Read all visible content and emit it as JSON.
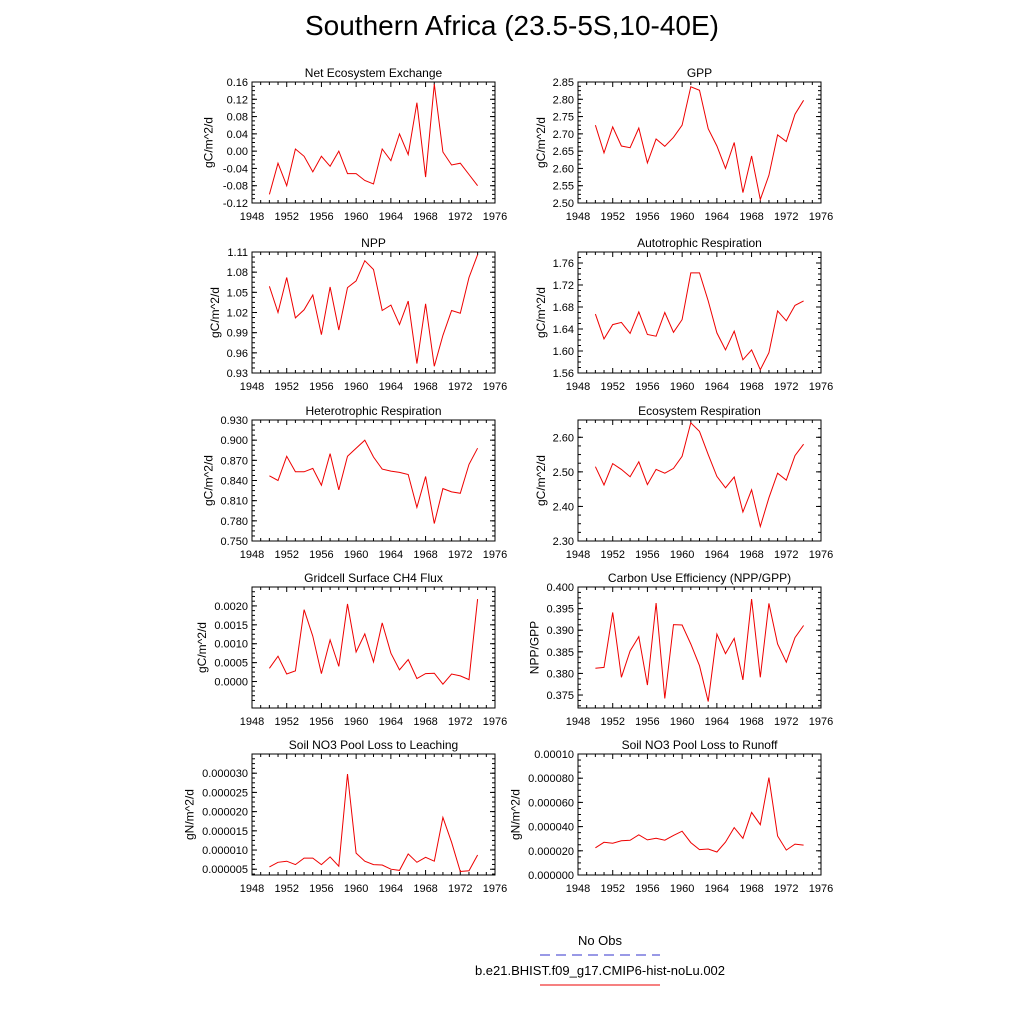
{
  "title": "Southern Africa (23.5-5S,10-40E)",
  "legend": {
    "obs_label": "No Obs",
    "obs_color": "#3333cc",
    "model_label": "b.e21.BHIST.f09_g17.CMIP6-hist-noLu.002",
    "model_color": "#ee0000"
  },
  "x_ticks": [
    "1948",
    "1952",
    "1956",
    "1960",
    "1964",
    "1968",
    "1972",
    "1976"
  ],
  "chart_data": [
    {
      "type": "line",
      "title": "Net Ecosystem Exchange",
      "ylabel": "gC/m^2/d",
      "xlim": [
        1948,
        1976
      ],
      "ylim": [
        -0.12,
        0.16
      ],
      "yticks": [
        "-0.12",
        "-0.08",
        "-0.04",
        "0.00",
        "0.04",
        "0.08",
        "0.12",
        "0.16"
      ],
      "x": [
        1950,
        1951,
        1952,
        1953,
        1954,
        1955,
        1956,
        1957,
        1958,
        1959,
        1960,
        1961,
        1962,
        1963,
        1964,
        1965,
        1966,
        1967,
        1968,
        1969,
        1970,
        1971,
        1972,
        1973,
        1974
      ],
      "values": [
        -0.1,
        -0.028,
        -0.08,
        0.005,
        -0.012,
        -0.048,
        -0.012,
        -0.035,
        0.0,
        -0.052,
        -0.052,
        -0.068,
        -0.076,
        0.005,
        -0.022,
        0.04,
        -0.008,
        0.112,
        -0.06,
        0.155,
        -0.002,
        -0.032,
        -0.028,
        -0.054,
        -0.08
      ]
    },
    {
      "type": "line",
      "title": "GPP",
      "ylabel": "gC/m^2/d",
      "xlim": [
        1948,
        1976
      ],
      "ylim": [
        2.5,
        2.85
      ],
      "yticks": [
        "2.50",
        "2.55",
        "2.60",
        "2.65",
        "2.70",
        "2.75",
        "2.80",
        "2.85"
      ],
      "x": [
        1950,
        1951,
        1952,
        1953,
        1954,
        1955,
        1956,
        1957,
        1958,
        1959,
        1960,
        1961,
        1962,
        1963,
        1964,
        1965,
        1966,
        1967,
        1968,
        1969,
        1970,
        1971,
        1972,
        1973,
        1974
      ],
      "values": [
        2.725,
        2.645,
        2.72,
        2.665,
        2.66,
        2.717,
        2.616,
        2.685,
        2.664,
        2.69,
        2.725,
        2.836,
        2.826,
        2.715,
        2.665,
        2.6,
        2.675,
        2.53,
        2.636,
        2.51,
        2.58,
        2.697,
        2.678,
        2.757,
        2.797
      ]
    },
    {
      "type": "line",
      "title": "NPP",
      "ylabel": "gC/m^2/d",
      "xlim": [
        1948,
        1976
      ],
      "ylim": [
        0.93,
        1.11
      ],
      "yticks": [
        "0.93",
        "0.96",
        "0.99",
        "1.02",
        "1.05",
        "1.08",
        "1.11"
      ],
      "x": [
        1950,
        1951,
        1952,
        1953,
        1954,
        1955,
        1956,
        1957,
        1958,
        1959,
        1960,
        1961,
        1962,
        1963,
        1964,
        1965,
        1966,
        1967,
        1968,
        1969,
        1970,
        1971,
        1972,
        1973,
        1974
      ],
      "values": [
        1.059,
        1.02,
        1.072,
        1.012,
        1.024,
        1.046,
        0.987,
        1.058,
        0.994,
        1.057,
        1.067,
        1.097,
        1.084,
        1.023,
        1.031,
        1.002,
        1.037,
        0.944,
        1.033,
        0.94,
        0.986,
        1.023,
        1.019,
        1.072,
        1.106
      ]
    },
    {
      "type": "line",
      "title": "Autotrophic Respiration",
      "ylabel": "gC/m^2/d",
      "xlim": [
        1948,
        1976
      ],
      "ylim": [
        1.56,
        1.78
      ],
      "yticks": [
        "1.56",
        "1.60",
        "1.64",
        "1.68",
        "1.72",
        "1.76"
      ],
      "x": [
        1950,
        1951,
        1952,
        1953,
        1954,
        1955,
        1956,
        1957,
        1958,
        1959,
        1960,
        1961,
        1962,
        1963,
        1964,
        1965,
        1966,
        1967,
        1968,
        1969,
        1970,
        1971,
        1972,
        1973,
        1974
      ],
      "values": [
        1.667,
        1.622,
        1.648,
        1.652,
        1.632,
        1.671,
        1.63,
        1.627,
        1.67,
        1.634,
        1.657,
        1.742,
        1.742,
        1.691,
        1.633,
        1.602,
        1.636,
        1.584,
        1.602,
        1.566,
        1.597,
        1.673,
        1.655,
        1.683,
        1.691
      ]
    },
    {
      "type": "line",
      "title": "Heterotrophic Respiration",
      "ylabel": "gC/m^2/d",
      "xlim": [
        1948,
        1976
      ],
      "ylim": [
        0.75,
        0.93
      ],
      "yticks": [
        "0.750",
        "0.780",
        "0.810",
        "0.840",
        "0.870",
        "0.900",
        "0.930"
      ],
      "x": [
        1950,
        1951,
        1952,
        1953,
        1954,
        1955,
        1956,
        1957,
        1958,
        1959,
        1960,
        1961,
        1962,
        1963,
        1964,
        1965,
        1966,
        1967,
        1968,
        1969,
        1970,
        1971,
        1972,
        1973,
        1974
      ],
      "values": [
        0.847,
        0.84,
        0.876,
        0.853,
        0.853,
        0.858,
        0.833,
        0.88,
        0.826,
        0.876,
        0.888,
        0.9,
        0.875,
        0.857,
        0.854,
        0.852,
        0.849,
        0.8,
        0.846,
        0.776,
        0.828,
        0.823,
        0.821,
        0.864,
        0.888
      ]
    },
    {
      "type": "line",
      "title": "Ecosystem Respiration",
      "ylabel": "gC/m^2/d",
      "xlim": [
        1948,
        1976
      ],
      "ylim": [
        2.3,
        2.65
      ],
      "yticks": [
        "2.30",
        "2.40",
        "2.50",
        "2.60"
      ],
      "x": [
        1950,
        1951,
        1952,
        1953,
        1954,
        1955,
        1956,
        1957,
        1958,
        1959,
        1960,
        1961,
        1962,
        1963,
        1964,
        1965,
        1966,
        1967,
        1968,
        1969,
        1970,
        1971,
        1972,
        1973,
        1974
      ],
      "values": [
        2.515,
        2.462,
        2.524,
        2.507,
        2.486,
        2.529,
        2.463,
        2.507,
        2.496,
        2.51,
        2.545,
        2.642,
        2.617,
        2.55,
        2.487,
        2.454,
        2.485,
        2.384,
        2.448,
        2.342,
        2.425,
        2.496,
        2.476,
        2.547,
        2.58
      ]
    },
    {
      "type": "line",
      "title": "Gridcell Surface CH4 Flux",
      "ylabel": "gC/m^2/d",
      "xlim": [
        1948,
        1976
      ],
      "ylim": [
        -0.0007,
        0.0025
      ],
      "yticks": [
        "0.0000",
        "0.0005",
        "0.0010",
        "0.0015",
        "0.0020"
      ],
      "x": [
        1950,
        1951,
        1952,
        1953,
        1954,
        1955,
        1956,
        1957,
        1958,
        1959,
        1960,
        1961,
        1962,
        1963,
        1964,
        1965,
        1966,
        1967,
        1968,
        1969,
        1970,
        1971,
        1972,
        1973,
        1974
      ],
      "values": [
        0.00035,
        0.00067,
        0.0002,
        0.00028,
        0.0019,
        0.0012,
        0.00021,
        0.0011,
        0.0004,
        0.00205,
        0.00078,
        0.00126,
        0.00052,
        0.00155,
        0.00075,
        0.00031,
        0.00058,
        8e-05,
        0.00021,
        0.00022,
        -7e-05,
        0.0002,
        0.00015,
        5e-05,
        0.00218
      ]
    },
    {
      "type": "line",
      "title": "Carbon Use Efficiency (NPP/GPP)",
      "ylabel": "NPP/GPP",
      "xlim": [
        1948,
        1976
      ],
      "ylim": [
        0.372,
        0.4
      ],
      "yticks": [
        "0.375",
        "0.380",
        "0.385",
        "0.390",
        "0.395",
        "0.400"
      ],
      "x": [
        1950,
        1951,
        1952,
        1953,
        1954,
        1955,
        1956,
        1957,
        1958,
        1959,
        1960,
        1961,
        1962,
        1963,
        1964,
        1965,
        1966,
        1967,
        1968,
        1969,
        1970,
        1971,
        1972,
        1973,
        1974
      ],
      "values": [
        0.3812,
        0.3814,
        0.3941,
        0.3791,
        0.3852,
        0.3885,
        0.3773,
        0.3963,
        0.3742,
        0.3913,
        0.3912,
        0.3868,
        0.3818,
        0.3735,
        0.3891,
        0.3846,
        0.3881,
        0.3785,
        0.3972,
        0.3791,
        0.3962,
        0.3868,
        0.3826,
        0.3883,
        0.3911
      ]
    },
    {
      "type": "line",
      "title": "Soil NO3 Pool Loss to Leaching",
      "ylabel": "gN/m^2/d",
      "xlim": [
        1948,
        1976
      ],
      "ylim": [
        3.5e-06,
        3.5e-05
      ],
      "yticks": [
        "0.000005",
        "0.000010",
        "0.000015",
        "0.000020",
        "0.000025",
        "0.000030"
      ],
      "x": [
        1950,
        1951,
        1952,
        1953,
        1954,
        1955,
        1956,
        1957,
        1958,
        1959,
        1960,
        1961,
        1962,
        1963,
        1964,
        1965,
        1966,
        1967,
        1968,
        1969,
        1970,
        1971,
        1972,
        1973,
        1974
      ],
      "values": [
        5.6e-06,
        6.8e-06,
        7.1e-06,
        6.2e-06,
        7.9e-06,
        7.9e-06,
        6.2e-06,
        8.2e-06,
        5.8e-06,
        2.98e-05,
        9.2e-06,
        7.1e-06,
        6.2e-06,
        6.1e-06,
        5e-06,
        4.7e-06,
        9e-06,
        6.8e-06,
        8.1e-06,
        7.1e-06,
        1.85e-05,
        1.2e-05,
        4.4e-06,
        4.6e-06,
        8.7e-06
      ]
    },
    {
      "type": "line",
      "title": "Soil NO3 Pool Loss to Runoff",
      "ylabel": "gN/m^2/d",
      "xlim": [
        1948,
        1976
      ],
      "ylim": [
        0,
        0.0001
      ],
      "yticks": [
        "0.000000",
        "0.000020",
        "0.000040",
        "0.000060",
        "0.000080",
        "0.00010"
      ],
      "x": [
        1950,
        1951,
        1952,
        1953,
        1954,
        1955,
        1956,
        1957,
        1958,
        1959,
        1960,
        1961,
        1962,
        1963,
        1964,
        1965,
        1966,
        1967,
        1968,
        1969,
        1970,
        1971,
        1972,
        1973,
        1974
      ],
      "values": [
        2.25e-05,
        2.7e-05,
        2.63e-05,
        2.83e-05,
        2.87e-05,
        3.32e-05,
        2.9e-05,
        3.03e-05,
        2.88e-05,
        3.27e-05,
        3.62e-05,
        2.68e-05,
        2.1e-05,
        2.15e-05,
        1.9e-05,
        2.72e-05,
        3.92e-05,
        3.03e-05,
        5.17e-05,
        4.16e-05,
        8.05e-05,
        3.22e-05,
        2.06e-05,
        2.55e-05,
        2.47e-05
      ]
    }
  ]
}
